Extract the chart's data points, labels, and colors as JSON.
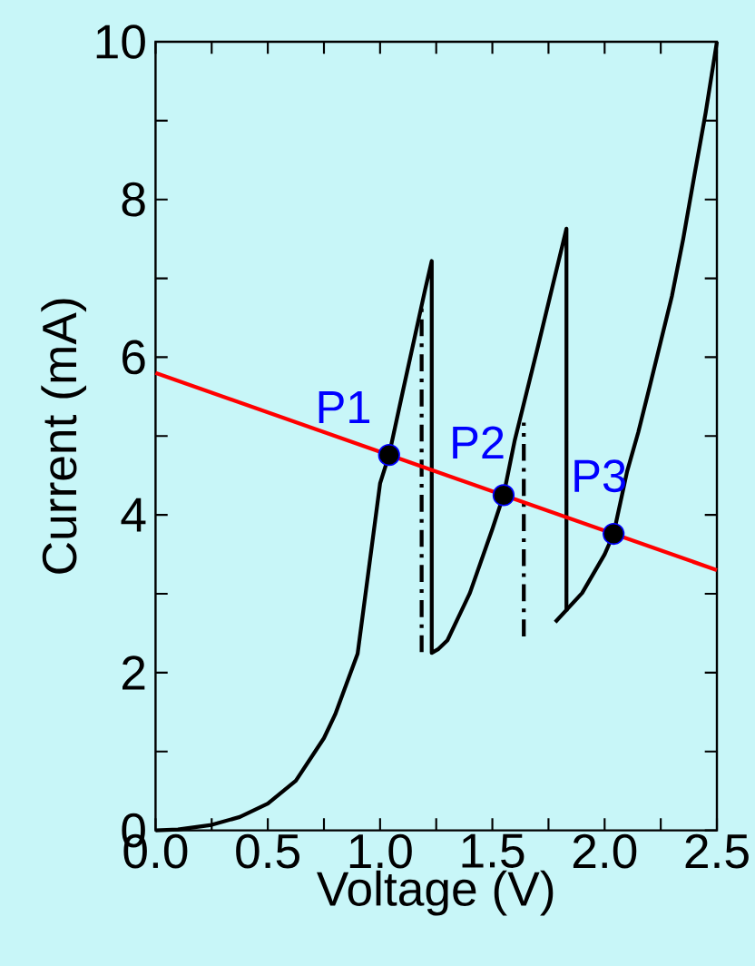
{
  "chart_data": {
    "type": "line",
    "xlabel": "Voltage (V)",
    "ylabel": "Current (mA)",
    "xlim": [
      0,
      2.5
    ],
    "ylim": [
      0,
      10
    ],
    "xticks": [
      {
        "value": 0,
        "label": "0.0"
      },
      {
        "value": 0.25,
        "label": null
      },
      {
        "value": 0.5,
        "label": "0.5"
      },
      {
        "value": 0.75,
        "label": null
      },
      {
        "value": 1,
        "label": "1.0"
      },
      {
        "value": 1.25,
        "label": null
      },
      {
        "value": 1.5,
        "label": "1.5"
      },
      {
        "value": 1.75,
        "label": null
      },
      {
        "value": 2,
        "label": "2.0"
      },
      {
        "value": 2.25,
        "label": null
      },
      {
        "value": 2.5,
        "label": "2.5"
      }
    ],
    "yticks": [
      0,
      {
        "value": 1,
        "label": null
      },
      2,
      {
        "value": 3,
        "label": null
      },
      4,
      {
        "value": 5,
        "label": null
      },
      6,
      {
        "value": 7,
        "label": null
      },
      8,
      {
        "value": 9,
        "label": null
      },
      10
    ],
    "series": [
      {
        "color": "#000000",
        "line_style": "solid",
        "x": [
          0,
          0.1,
          0.25,
          0.375,
          0.5,
          0.625,
          0.75,
          0.8,
          0.9,
          0.95,
          1.0,
          1.04,
          1.1,
          1.2,
          1.23,
          1.23,
          1.26,
          1.3,
          1.4,
          1.5,
          1.55,
          1.6,
          1.7,
          1.83,
          1.83
        ],
        "values": [
          0,
          0.01,
          0.07,
          0.17,
          0.34,
          0.63,
          1.17,
          1.47,
          2.24,
          3.32,
          4.4,
          4.76,
          5.55,
          6.85,
          7.22,
          2.25,
          2.3,
          2.41,
          3.01,
          3.82,
          4.25,
          4.95,
          6.1,
          7.63,
          2.78
        ]
      },
      {
        "color": "#000000",
        "line_style": "solid",
        "x": [
          1.78,
          1.9,
          2.0,
          2.04,
          2.1,
          2.15,
          2.2,
          2.3,
          2.35,
          2.4,
          2.45,
          2.5
        ],
        "values": [
          2.64,
          3.01,
          3.5,
          3.76,
          4.55,
          5.05,
          5.62,
          6.78,
          7.5,
          8.31,
          9.1,
          10
        ]
      },
      {
        "color": "#000000",
        "line_style": "dashed",
        "x": [
          1.185,
          1.185
        ],
        "values": [
          2.26,
          6.62
        ]
      },
      {
        "color": "#000000",
        "line_style": "dashed",
        "x": [
          1.64,
          1.64
        ],
        "values": [
          2.46,
          5.17
        ]
      },
      {
        "color": "#ff0000",
        "line_style": "solid",
        "x": [
          0,
          2.5
        ],
        "values": [
          5.8,
          3.3
        ]
      },
      {
        "type": "scatter",
        "color": "#000000",
        "marker": "circle",
        "x": [
          1.04,
          1.55,
          2.04
        ],
        "values": [
          4.76,
          4.25,
          3.76
        ]
      }
    ],
    "annotations": [
      {
        "text": "P1",
        "x": 1.04,
        "y": 4.76
      },
      {
        "text": "P2",
        "x": 1.55,
        "y": 4.25
      },
      {
        "text": "P3",
        "x": 2.04,
        "y": 3.76
      }
    ]
  }
}
